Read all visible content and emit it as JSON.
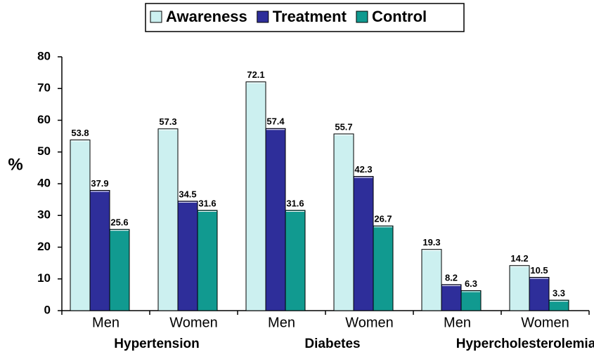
{
  "chart_data": {
    "type": "bar",
    "categories": [
      "Men",
      "Women",
      "Men",
      "Women",
      "Men",
      "Women"
    ],
    "groups": [
      "Hypertension",
      "Diabetes",
      "Hypercholesterolemia"
    ],
    "y_label": "%",
    "series": [
      {
        "name": "Awareness",
        "color": "#ccf0f0",
        "values": [
          53.8,
          57.3,
          72.1,
          55.7,
          19.3,
          14.2
        ]
      },
      {
        "name": "Treatment",
        "color": "#2e2e9a",
        "values": [
          37.9,
          34.5,
          57.4,
          42.3,
          8.2,
          10.5
        ]
      },
      {
        "name": "Control",
        "color": "#119a90",
        "values": [
          25.6,
          31.6,
          31.6,
          26.7,
          6.3,
          3.3
        ]
      }
    ],
    "ylim": [
      0,
      80
    ],
    "yticks": [
      0,
      10,
      20,
      30,
      40,
      50,
      60,
      70,
      80
    ],
    "grid": false
  }
}
